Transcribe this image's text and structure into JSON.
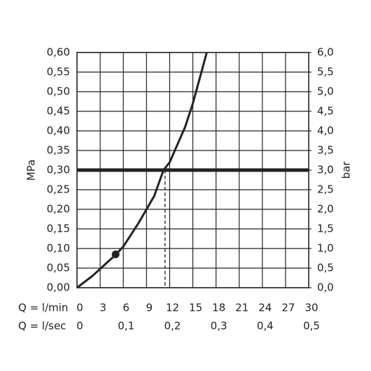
{
  "chart_data": {
    "type": "line",
    "y_label": "MPa",
    "y2_label": "bar",
    "x_label": "Q = l/min",
    "x2_label": "Q = l/sec",
    "xlim": [
      0,
      30
    ],
    "xticks": [
      0,
      3,
      6,
      9,
      12,
      15,
      18,
      21,
      24,
      27,
      30
    ],
    "x2lim": [
      0,
      0.5
    ],
    "x2ticks": [
      0,
      {
        "value": 0.1,
        "label": "0,1"
      },
      {
        "value": 0.2,
        "label": "0,2"
      },
      {
        "value": 0.3,
        "label": "0,3"
      },
      {
        "value": 0.4,
        "label": "0,4"
      },
      {
        "value": 0.5,
        "label": "0,5"
      }
    ],
    "ylim": [
      0,
      0.6
    ],
    "yticks": [
      {
        "value": 0,
        "label": "0,00"
      },
      {
        "value": 0.05,
        "label": "0,05"
      },
      {
        "value": 0.1,
        "label": "0,10"
      },
      {
        "value": 0.15,
        "label": "0,15"
      },
      {
        "value": 0.2,
        "label": "0,20"
      },
      {
        "value": 0.25,
        "label": "0,25"
      },
      {
        "value": 0.3,
        "label": "0,30"
      },
      {
        "value": 0.35,
        "label": "0,35"
      },
      {
        "value": 0.4,
        "label": "0,40"
      },
      {
        "value": 0.45,
        "label": "0,45"
      },
      {
        "value": 0.5,
        "label": "0,50"
      },
      {
        "value": 0.55,
        "label": "0,55"
      },
      {
        "value": 0.6,
        "label": "0,60"
      }
    ],
    "y2lim": [
      0,
      6
    ],
    "y2ticks": [
      {
        "value": 0,
        "label": "0,0"
      },
      {
        "value": 0.5,
        "label": "0,5"
      },
      {
        "value": 1,
        "label": "1,0"
      },
      {
        "value": 1.5,
        "label": "1,5"
      },
      {
        "value": 2,
        "label": "2,0"
      },
      {
        "value": 2.5,
        "label": "2,5"
      },
      {
        "value": 3,
        "label": "3,0"
      },
      {
        "value": 3.5,
        "label": "3,5"
      },
      {
        "value": 4,
        "label": "4,0"
      },
      {
        "value": 4.5,
        "label": "4,5"
      },
      {
        "value": 5,
        "label": "5,0"
      },
      {
        "value": 5.5,
        "label": "5,5"
      },
      {
        "value": 6,
        "label": "6,0"
      }
    ],
    "grid": true,
    "series": [
      {
        "color": "#222222",
        "x": [
          0,
          2,
          4,
          5,
          6,
          8,
          10,
          11.2,
          12,
          14,
          15,
          16.8
        ],
        "values": [
          0,
          0.03,
          0.066,
          0.084,
          0.105,
          0.166,
          0.234,
          0.3,
          0.32,
          0.41,
          0.47,
          0.6
        ]
      }
    ],
    "reference_line": {
      "y": 0.3
    },
    "drop_line": {
      "x": 11.4,
      "y": 0.3
    },
    "marker": {
      "x": 5,
      "y": 0.085
    }
  }
}
